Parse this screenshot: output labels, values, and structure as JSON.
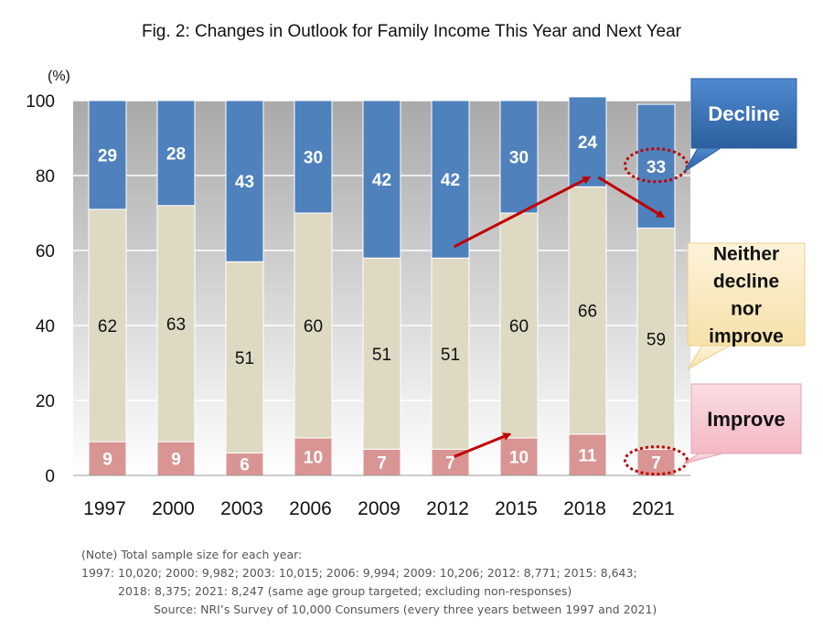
{
  "chart_data": {
    "type": "bar",
    "stacked": true,
    "title": "Fig. 2: Changes in Outlook for Family Income This Year and Next Year",
    "ylabel": "(%)",
    "ylim": [
      0,
      100
    ],
    "yticks": [
      0,
      20,
      40,
      60,
      80,
      100
    ],
    "grid": true,
    "categories": [
      "1997",
      "2000",
      "2003",
      "2006",
      "2009",
      "2012",
      "2015",
      "2018",
      "2021"
    ],
    "series": [
      {
        "name": "Improve",
        "values": [
          9,
          9,
          6,
          10,
          7,
          7,
          10,
          11,
          7
        ],
        "color": "#d99594",
        "label_color": "#ffffff"
      },
      {
        "name": "Neither decline nor improve",
        "values": [
          62,
          63,
          51,
          60,
          51,
          51,
          60,
          66,
          59
        ],
        "color": "#ddd9c3",
        "label_color": "#111111"
      },
      {
        "name": "Decline",
        "values": [
          29,
          28,
          43,
          30,
          42,
          42,
          30,
          24,
          33
        ],
        "color": "#4f81bd",
        "label_color": "#ffffff"
      }
    ],
    "legend": [
      {
        "lines": [
          "Decline"
        ],
        "bg": "#3a6fb3",
        "text_color": "#ffffff"
      },
      {
        "lines": [
          "Neither",
          "decline",
          "nor",
          "improve"
        ],
        "bg": "#fcecc5",
        "text_color": "#111111"
      },
      {
        "lines": [
          "Improve"
        ],
        "bg": "#f7cbd3",
        "text_color": "#111111"
      }
    ],
    "accent_color": "#c00000"
  },
  "notes": {
    "line1": "(Note) Total sample size for each year:",
    "line2": "1997: 10,020; 2000: 9,982; 2003: 10,015; 2006: 9,994; 2009: 10,206; 2012: 8,771; 2015: 8,643;",
    "line3": "2018: 8,375; 2021: 8,247 (same age group targeted; excluding non-responses)",
    "source": "Source: NRI’s Survey of 10,000 Consumers (every three years between 1997 and 2021)"
  }
}
